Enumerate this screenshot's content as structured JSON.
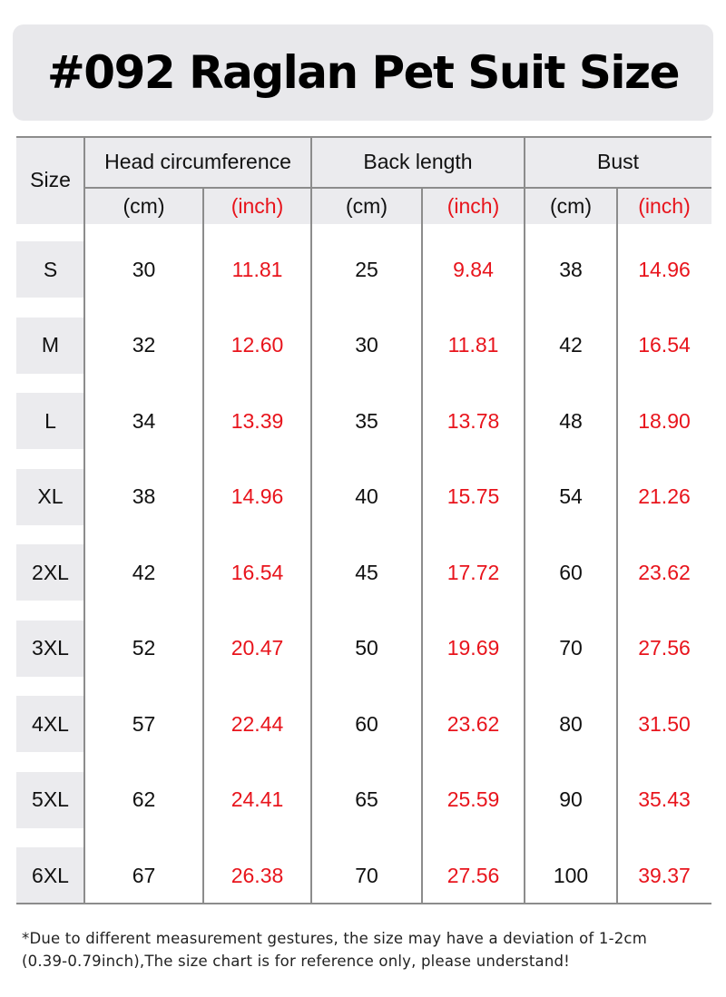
{
  "title": "#092  Raglan Pet Suit Size",
  "headers": {
    "size": "Size",
    "groups": [
      "Head circumference",
      "Back length",
      "Bust"
    ],
    "units": [
      "(cm)",
      "(inch)",
      "(cm)",
      "(inch)",
      "(cm)",
      "(inch)"
    ]
  },
  "rows": [
    {
      "size": "S",
      "values": [
        "30",
        "11.81",
        "25",
        "9.84",
        "38",
        "14.96"
      ]
    },
    {
      "size": "M",
      "values": [
        "32",
        "12.60",
        "30",
        "11.81",
        "42",
        "16.54"
      ]
    },
    {
      "size": "L",
      "values": [
        "34",
        "13.39",
        "35",
        "13.78",
        "48",
        "18.90"
      ]
    },
    {
      "size": "XL",
      "values": [
        "38",
        "14.96",
        "40",
        "15.75",
        "54",
        "21.26"
      ]
    },
    {
      "size": "2XL",
      "values": [
        "42",
        "16.54",
        "45",
        "17.72",
        "60",
        "23.62"
      ]
    },
    {
      "size": "3XL",
      "values": [
        "52",
        "20.47",
        "50",
        "19.69",
        "70",
        "27.56"
      ]
    },
    {
      "size": "4XL",
      "values": [
        "57",
        "22.44",
        "60",
        "23.62",
        "80",
        "31.50"
      ]
    },
    {
      "size": "5XL",
      "values": [
        "62",
        "24.41",
        "65",
        "25.59",
        "90",
        "35.43"
      ]
    },
    {
      "size": "6XL",
      "values": [
        "67",
        "26.38",
        "70",
        "27.56",
        "100",
        "39.37"
      ]
    }
  ],
  "note": {
    "line1": "*Due to different measurement gestures, the size may have a deviation of 1-2cm",
    "line2": "(0.39-0.79inch),The size chart is for reference only, please understand!"
  },
  "colors": {
    "inch_text": "#e8141c",
    "header_bg": "#ebebee",
    "grid": "#8c8c8c"
  }
}
